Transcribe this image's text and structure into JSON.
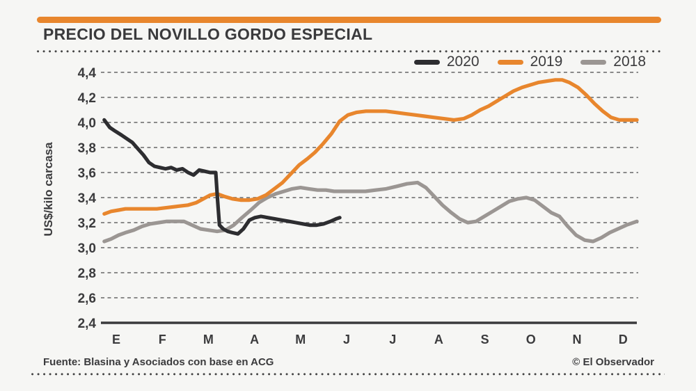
{
  "header": {
    "title": "PRECIO DEL NOVILLO GORDO ESPECIAL"
  },
  "footer": {
    "source": "Fuente: Blasina y Asociados con base en ACG",
    "credit": "© El Observador"
  },
  "colors": {
    "accent_bar": "#E8862D",
    "background": "#F6F6F4",
    "text": "#3B3B3D",
    "grid": "#8A8A8A",
    "axis": "#3A3A3C",
    "line_2020": "#2D2D30",
    "line_2019": "#E8862D",
    "line_2018": "#9B9693"
  },
  "chart_data": {
    "type": "line",
    "title": "PRECIO DEL NOVILLO GORDO ESPECIAL",
    "xlabel": "",
    "ylabel": "US$/kilo carcasa",
    "ylim": [
      2.4,
      4.4
    ],
    "yticks": [
      "4,4",
      "4,2",
      "4,0",
      "3,8",
      "3,6",
      "3,4",
      "3,2",
      "3,0",
      "2,8",
      "2,6",
      "2,4"
    ],
    "ytick_values": [
      4.4,
      4.2,
      4.0,
      3.8,
      3.6,
      3.4,
      3.2,
      3.0,
      2.8,
      2.6,
      2.4
    ],
    "x_months": [
      "E",
      "F",
      "M",
      "A",
      "M",
      "J",
      "J",
      "A",
      "S",
      "O",
      "N",
      "D"
    ],
    "grid": "horizontal-dashed",
    "legend_position": "top-right",
    "x_unit": "month index (0 = E/enero, 11 = D/diciembre), fractional = weekly data",
    "series": [
      {
        "name": "2020",
        "color": "#2D2D30",
        "points": [
          [
            -0.26,
            4.02
          ],
          [
            -0.14,
            3.96
          ],
          [
            -0.02,
            3.93
          ],
          [
            0.11,
            3.9
          ],
          [
            0.23,
            3.87
          ],
          [
            0.35,
            3.84
          ],
          [
            0.47,
            3.79
          ],
          [
            0.59,
            3.74
          ],
          [
            0.71,
            3.68
          ],
          [
            0.83,
            3.65
          ],
          [
            0.95,
            3.64
          ],
          [
            1.07,
            3.63
          ],
          [
            1.19,
            3.64
          ],
          [
            1.31,
            3.62
          ],
          [
            1.44,
            3.63
          ],
          [
            1.56,
            3.6
          ],
          [
            1.68,
            3.58
          ],
          [
            1.8,
            3.62
          ],
          [
            1.92,
            3.61
          ],
          [
            2.04,
            3.6
          ],
          [
            2.16,
            3.6
          ],
          [
            2.2,
            3.38
          ],
          [
            2.24,
            3.18
          ],
          [
            2.32,
            3.15
          ],
          [
            2.42,
            3.13
          ],
          [
            2.52,
            3.12
          ],
          [
            2.64,
            3.11
          ],
          [
            2.76,
            3.15
          ],
          [
            2.89,
            3.22
          ],
          [
            3.01,
            3.24
          ],
          [
            3.14,
            3.25
          ],
          [
            3.29,
            3.24
          ],
          [
            3.44,
            3.23
          ],
          [
            3.6,
            3.22
          ],
          [
            3.75,
            3.21
          ],
          [
            3.9,
            3.2
          ],
          [
            4.05,
            3.19
          ],
          [
            4.2,
            3.18
          ],
          [
            4.35,
            3.18
          ],
          [
            4.5,
            3.19
          ],
          [
            4.65,
            3.21
          ],
          [
            4.77,
            3.23
          ],
          [
            4.85,
            3.24
          ]
        ]
      },
      {
        "name": "2019",
        "color": "#E8862D",
        "points": [
          [
            -0.26,
            3.27
          ],
          [
            -0.11,
            3.29
          ],
          [
            0.05,
            3.3
          ],
          [
            0.2,
            3.31
          ],
          [
            0.42,
            3.31
          ],
          [
            0.65,
            3.31
          ],
          [
            0.88,
            3.31
          ],
          [
            1.1,
            3.32
          ],
          [
            1.33,
            3.33
          ],
          [
            1.56,
            3.34
          ],
          [
            1.74,
            3.36
          ],
          [
            1.89,
            3.39
          ],
          [
            2.04,
            3.42
          ],
          [
            2.19,
            3.43
          ],
          [
            2.34,
            3.41
          ],
          [
            2.52,
            3.39
          ],
          [
            2.7,
            3.38
          ],
          [
            2.89,
            3.38
          ],
          [
            3.07,
            3.39
          ],
          [
            3.25,
            3.42
          ],
          [
            3.43,
            3.47
          ],
          [
            3.61,
            3.52
          ],
          [
            3.79,
            3.59
          ],
          [
            3.97,
            3.66
          ],
          [
            4.15,
            3.71
          ],
          [
            4.31,
            3.76
          ],
          [
            4.49,
            3.83
          ],
          [
            4.67,
            3.91
          ],
          [
            4.85,
            4.01
          ],
          [
            5.03,
            4.06
          ],
          [
            5.21,
            4.08
          ],
          [
            5.42,
            4.09
          ],
          [
            5.63,
            4.09
          ],
          [
            5.85,
            4.09
          ],
          [
            6.06,
            4.08
          ],
          [
            6.27,
            4.07
          ],
          [
            6.48,
            4.06
          ],
          [
            6.69,
            4.05
          ],
          [
            6.9,
            4.04
          ],
          [
            7.11,
            4.03
          ],
          [
            7.33,
            4.02
          ],
          [
            7.54,
            4.03
          ],
          [
            7.72,
            4.06
          ],
          [
            7.9,
            4.1
          ],
          [
            8.08,
            4.13
          ],
          [
            8.26,
            4.17
          ],
          [
            8.44,
            4.21
          ],
          [
            8.62,
            4.25
          ],
          [
            8.81,
            4.28
          ],
          [
            8.99,
            4.3
          ],
          [
            9.17,
            4.32
          ],
          [
            9.35,
            4.33
          ],
          [
            9.53,
            4.34
          ],
          [
            9.68,
            4.34
          ],
          [
            9.83,
            4.32
          ],
          [
            10.02,
            4.28
          ],
          [
            10.2,
            4.22
          ],
          [
            10.38,
            4.15
          ],
          [
            10.56,
            4.09
          ],
          [
            10.74,
            4.04
          ],
          [
            10.92,
            4.02
          ],
          [
            11.1,
            4.02
          ],
          [
            11.3,
            4.02
          ]
        ]
      },
      {
        "name": "2018",
        "color": "#9B9693",
        "points": [
          [
            -0.26,
            3.05
          ],
          [
            -0.11,
            3.07
          ],
          [
            0.05,
            3.1
          ],
          [
            0.2,
            3.12
          ],
          [
            0.38,
            3.14
          ],
          [
            0.56,
            3.17
          ],
          [
            0.74,
            3.19
          ],
          [
            0.92,
            3.2
          ],
          [
            1.1,
            3.21
          ],
          [
            1.28,
            3.21
          ],
          [
            1.47,
            3.21
          ],
          [
            1.65,
            3.18
          ],
          [
            1.83,
            3.15
          ],
          [
            2.01,
            3.14
          ],
          [
            2.19,
            3.13
          ],
          [
            2.37,
            3.14
          ],
          [
            2.55,
            3.18
          ],
          [
            2.73,
            3.24
          ],
          [
            2.92,
            3.3
          ],
          [
            3.1,
            3.36
          ],
          [
            3.28,
            3.4
          ],
          [
            3.46,
            3.43
          ],
          [
            3.64,
            3.45
          ],
          [
            3.82,
            3.47
          ],
          [
            4.0,
            3.48
          ],
          [
            4.18,
            3.47
          ],
          [
            4.37,
            3.46
          ],
          [
            4.55,
            3.46
          ],
          [
            4.73,
            3.45
          ],
          [
            4.95,
            3.45
          ],
          [
            5.18,
            3.45
          ],
          [
            5.41,
            3.45
          ],
          [
            5.63,
            3.46
          ],
          [
            5.86,
            3.47
          ],
          [
            6.09,
            3.49
          ],
          [
            6.31,
            3.51
          ],
          [
            6.54,
            3.52
          ],
          [
            6.72,
            3.48
          ],
          [
            6.9,
            3.41
          ],
          [
            7.08,
            3.34
          ],
          [
            7.27,
            3.28
          ],
          [
            7.45,
            3.23
          ],
          [
            7.63,
            3.2
          ],
          [
            7.81,
            3.21
          ],
          [
            7.99,
            3.25
          ],
          [
            8.17,
            3.29
          ],
          [
            8.35,
            3.33
          ],
          [
            8.53,
            3.37
          ],
          [
            8.72,
            3.39
          ],
          [
            8.9,
            3.4
          ],
          [
            9.08,
            3.38
          ],
          [
            9.26,
            3.33
          ],
          [
            9.44,
            3.28
          ],
          [
            9.62,
            3.25
          ],
          [
            9.8,
            3.17
          ],
          [
            9.98,
            3.1
          ],
          [
            10.17,
            3.06
          ],
          [
            10.35,
            3.05
          ],
          [
            10.53,
            3.08
          ],
          [
            10.71,
            3.12
          ],
          [
            10.89,
            3.15
          ],
          [
            11.07,
            3.18
          ],
          [
            11.3,
            3.21
          ]
        ]
      }
    ]
  }
}
